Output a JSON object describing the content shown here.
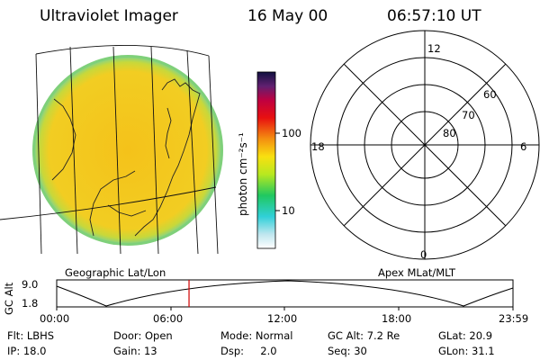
{
  "header": {
    "instrument": "Ultraviolet Imager",
    "date": "16 May 00",
    "time": "06:57:10 UT"
  },
  "colorbar": {
    "unit_label": "photon cm⁻²s⁻¹",
    "ticks": [
      "100",
      "10"
    ]
  },
  "polar_plot": {
    "mlt_labels": {
      "top": "12",
      "left": "18",
      "right": "6",
      "bottom": "0"
    },
    "lat_labels": [
      "60",
      "70",
      "80"
    ]
  },
  "timeline": {
    "left_caption": "Geographic Lat/Lon",
    "right_caption": "Apex MLat/MLT",
    "axis_title": "GC Alt",
    "y_labels": [
      "9.0",
      "1.8"
    ],
    "x_labels": [
      "00:00",
      "06:00",
      "12:00",
      "18:00",
      "23:59"
    ],
    "marker_fraction": 0.29
  },
  "info": {
    "filter": "Flt: LBHS",
    "door": "Door: Open",
    "mode": "Mode: Normal",
    "gc_alt": "GC Alt: 7.2 Re",
    "glat": "GLat: 20.9",
    "ip": "IP: 18.0",
    "gain": "Gain: 13",
    "dsp": "Dsp:     2.0",
    "seq": "Seq: 30",
    "glon": "GLon: 31.1"
  },
  "colors": {
    "disk": "#f2c81a",
    "disk_rim": "#a6d94a",
    "marker": "#d00000"
  }
}
